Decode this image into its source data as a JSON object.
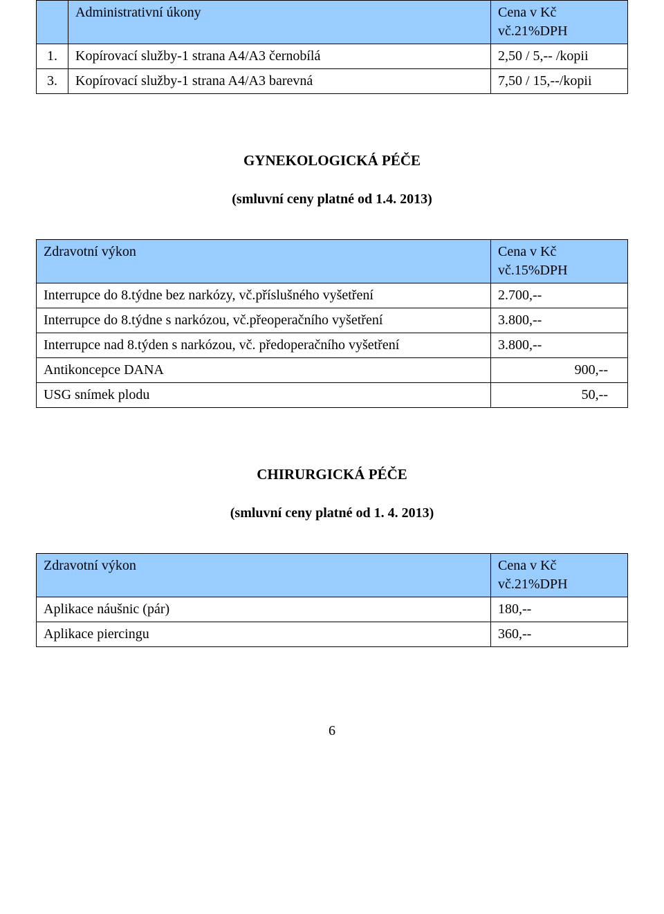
{
  "table1": {
    "header": {
      "desc": "Administrativní úkony",
      "price": "Cena v Kč\nvč.21%DPH"
    },
    "rows": [
      {
        "num": "1.",
        "desc": "Kopírovací služby-1 strana A4/A3 černobílá",
        "price": "2,50 / 5,-- /kopii"
      },
      {
        "num": "3.",
        "desc": "Kopírovací služby-1 strana A4/A3 barevná",
        "price": "7,50 / 15,--/kopii"
      }
    ]
  },
  "section2": {
    "title": "GYNEKOLOGICKÁ PÉČE",
    "subtitle": "(smluvní ceny platné od 1.4. 2013)"
  },
  "table2": {
    "header": {
      "desc": "Zdravotní výkon",
      "price": "Cena v Kč\nvč.15%DPH"
    },
    "rows": [
      {
        "desc": "Interrupce do 8.týdne bez narkózy, vč.příslušného vyšetření",
        "price": "2.700,--"
      },
      {
        "desc": "Interrupce do 8.týdne s narkózou, vč.přeoperačního vyšetření",
        "price": "3.800,--"
      },
      {
        "desc": "Interrupce nad 8.týden s narkózou, vč. předoperačního vyšetření",
        "price": "3.800,--"
      },
      {
        "desc": "Antikoncepce DANA",
        "price": "900,--"
      },
      {
        "desc": "USG snímek plodu",
        "price": "50,--"
      }
    ]
  },
  "section3": {
    "title": "CHIRURGICKÁ PÉČE",
    "subtitle": "(smluvní ceny platné od 1. 4. 2013)"
  },
  "table3": {
    "header": {
      "desc": "Zdravotní výkon",
      "price": "Cena v Kč\nvč.21%DPH"
    },
    "rows": [
      {
        "desc": "Aplikace náušnic (pár)",
        "price": "180,--"
      },
      {
        "desc": "Aplikace piercingu",
        "price": "360,--"
      }
    ]
  },
  "page_number": "6",
  "colors": {
    "header_bg": "#99ccff",
    "border": "#000000",
    "text": "#000000",
    "page_bg": "#ffffff"
  }
}
